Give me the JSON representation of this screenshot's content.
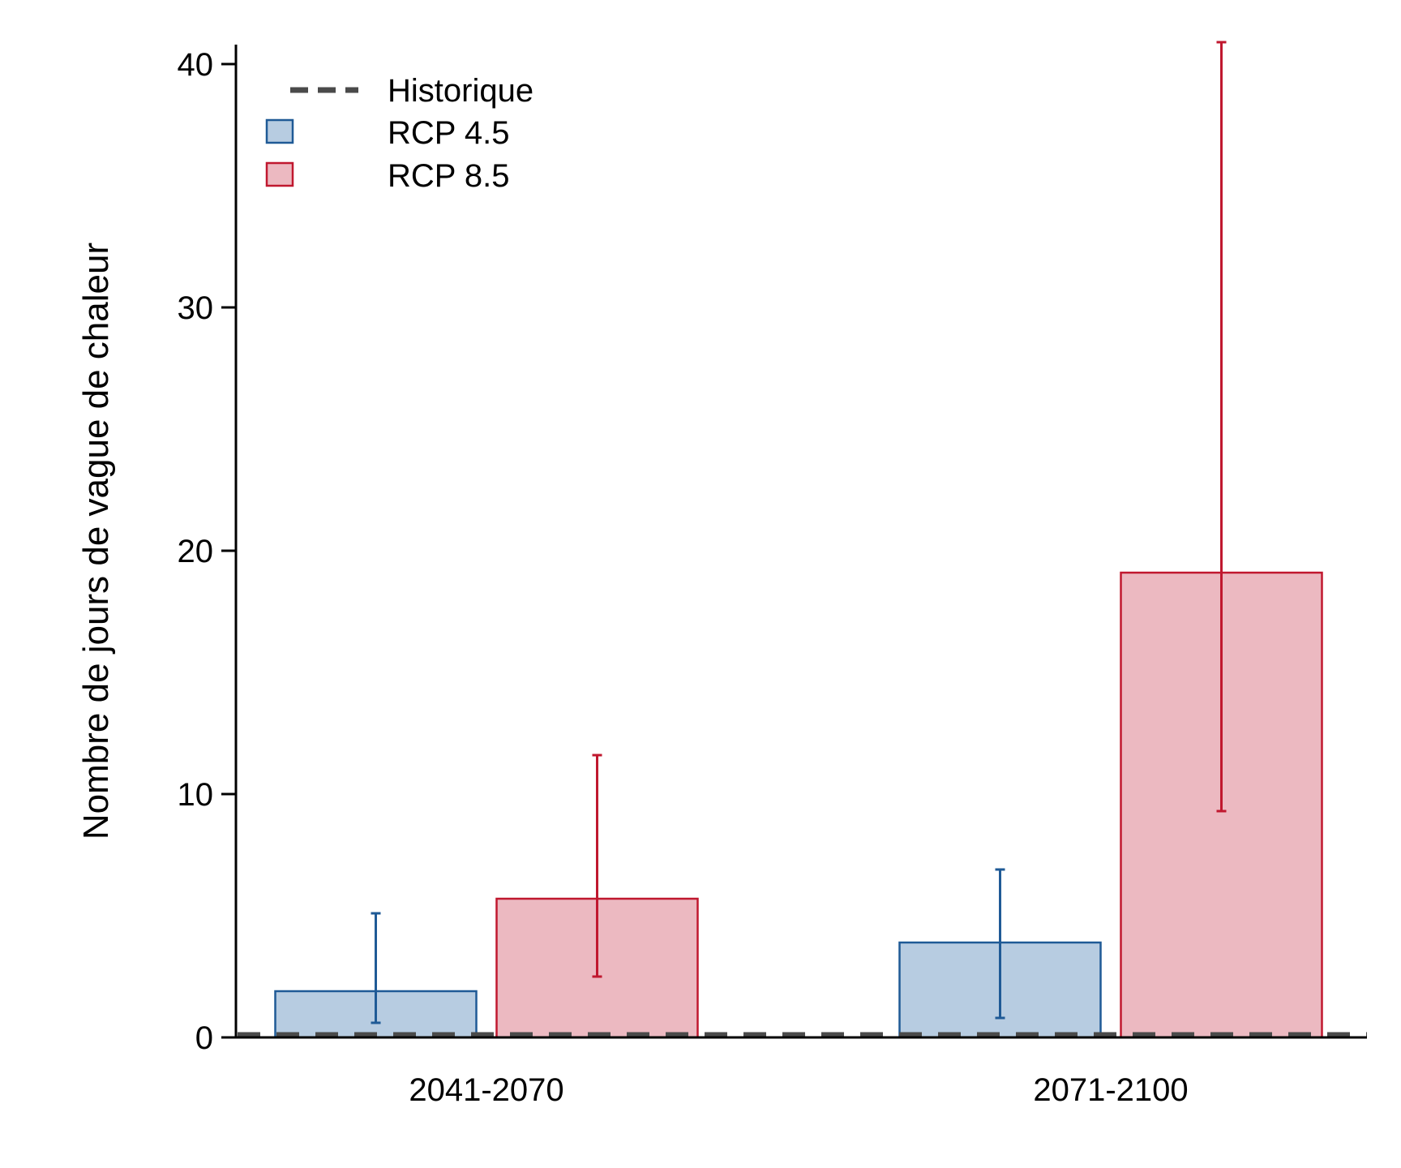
{
  "chart_data": {
    "type": "bar",
    "title": "",
    "xlabel": "",
    "ylabel": "Nombre de jours de vague de chaleur",
    "categories": [
      "2041-2070",
      "2071-2100"
    ],
    "ylim": [
      0,
      40.8
    ],
    "yticks": [
      "0",
      "10",
      "20",
      "30",
      "40"
    ],
    "grid": false,
    "legend_position": "top-left",
    "series": [
      {
        "name": "RCP 4.5",
        "values": [
          1.9,
          3.9
        ],
        "error_low": [
          0.6,
          0.8
        ],
        "error_high": [
          5.1,
          6.9
        ],
        "fill": "#b7cce1",
        "stroke": "#1f5a96"
      },
      {
        "name": "RCP 8.5",
        "values": [
          5.7,
          19.1
        ],
        "error_low": [
          2.5,
          9.3
        ],
        "error_high": [
          11.6,
          40.9
        ],
        "fill": "#ecb9c1",
        "stroke": "#c0182f"
      }
    ],
    "reference_line": {
      "name": "Historique",
      "value": 0.1,
      "style": "dashed",
      "color": "#4a4a4a"
    }
  }
}
